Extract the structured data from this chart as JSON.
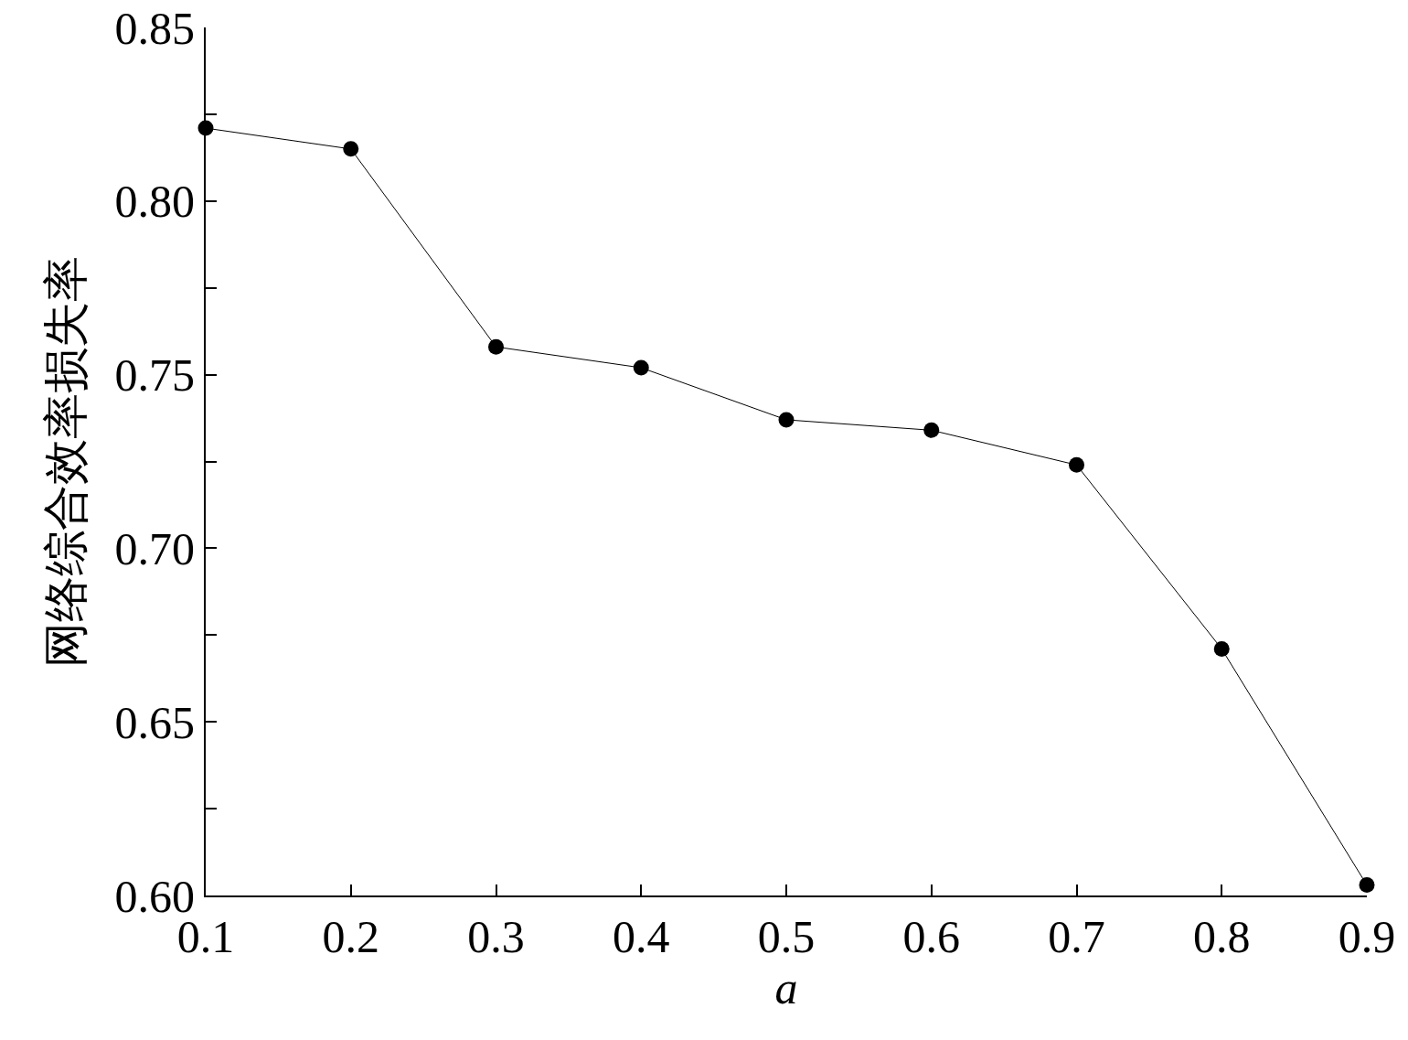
{
  "chart_data": {
    "type": "line",
    "xlabel": "a",
    "ylabel": "网络综合效率损失率",
    "x": [
      0.1,
      0.2,
      0.3,
      0.4,
      0.5,
      0.6,
      0.7,
      0.8,
      0.9
    ],
    "series": [
      {
        "color": "#000000",
        "values": [
          0.821,
          0.815,
          0.758,
          0.752,
          0.737,
          0.734,
          0.724,
          0.671,
          0.603
        ]
      }
    ],
    "xlim": [
      0.1,
      0.9
    ],
    "xticks": [
      0.1,
      0.2,
      0.3,
      0.4,
      0.5,
      0.6,
      0.7,
      0.8,
      0.9
    ],
    "ylim": [
      0.6,
      0.85
    ],
    "yticks": [
      {
        "value": 0.6,
        "label": "0.60"
      },
      {
        "value": 0.625,
        "label": null
      },
      {
        "value": 0.65,
        "label": "0.65"
      },
      {
        "value": 0.675,
        "label": null
      },
      {
        "value": 0.7,
        "label": "0.70"
      },
      {
        "value": 0.725,
        "label": null
      },
      {
        "value": 0.75,
        "label": "0.75"
      },
      {
        "value": 0.775,
        "label": null
      },
      {
        "value": 0.8,
        "label": "0.80"
      },
      {
        "value": 0.825,
        "label": null
      },
      {
        "value": 0.85,
        "label": "0.85"
      }
    ],
    "grid": false,
    "marker": "circle",
    "line_style": "solid"
  }
}
